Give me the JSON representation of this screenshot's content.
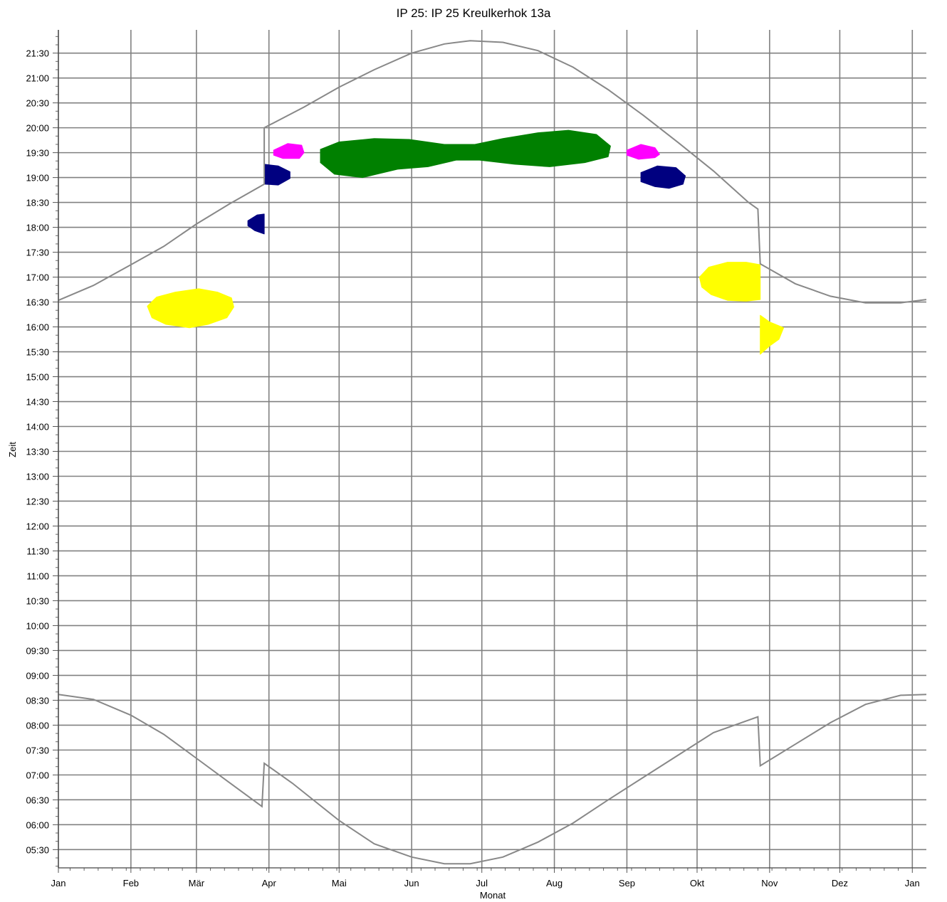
{
  "chart_data": {
    "type": "area",
    "title": "IP 25: IP 25 Kreulkerhok 13a",
    "xlabel": "Monat",
    "ylabel": "Zeit",
    "x_ticks": [
      "Jan",
      "Feb",
      "Mär",
      "Apr",
      "Mai",
      "Jun",
      "Jul",
      "Aug",
      "Sep",
      "Okt",
      "Nov",
      "Dez",
      "Jan"
    ],
    "y_ticks": [
      "05:30",
      "06:00",
      "06:30",
      "07:00",
      "07:30",
      "08:00",
      "08:30",
      "09:00",
      "09:30",
      "10:00",
      "10:30",
      "11:00",
      "11:30",
      "12:00",
      "12:30",
      "13:00",
      "13:30",
      "14:00",
      "14:30",
      "15:00",
      "15:30",
      "16:00",
      "16:30",
      "17:00",
      "17:30",
      "18:00",
      "18:30",
      "19:00",
      "19:30",
      "20:00",
      "20:30",
      "21:00",
      "21:30"
    ],
    "x_range": [
      "Jan 1",
      "Jan 1 (next year)"
    ],
    "y_range": [
      "05:08",
      "21:58"
    ],
    "grid": true,
    "colors": {
      "line": "#888888",
      "grid": "#808080",
      "yellow": "#ffff00",
      "green": "#008000",
      "navy": "#000080",
      "magenta": "#ff00ff",
      "silver": "#c0c0c0"
    },
    "series": [
      {
        "type": "line",
        "color": "#888888",
        "points": [
          [
            0,
            "16:32"
          ],
          [
            15,
            "16:50"
          ],
          [
            31,
            "17:15"
          ],
          [
            45,
            "17:37"
          ],
          [
            59,
            "18:04"
          ],
          [
            73,
            "18:28"
          ],
          [
            88,
            "18:52"
          ],
          [
            88,
            "20:00"
          ],
          [
            105,
            "20:25"
          ],
          [
            120,
            "20:49"
          ],
          [
            135,
            "21:10"
          ],
          [
            151,
            "21:30"
          ],
          [
            165,
            "21:41"
          ],
          [
            176,
            "21:45"
          ],
          [
            190,
            "21:43"
          ],
          [
            205,
            "21:33"
          ],
          [
            220,
            "21:13"
          ],
          [
            235,
            "20:46"
          ],
          [
            250,
            "20:15"
          ],
          [
            265,
            "19:42"
          ],
          [
            280,
            "19:08"
          ],
          [
            295,
            "18:30"
          ],
          [
            299,
            "18:22"
          ],
          [
            300,
            "17:16"
          ],
          [
            315,
            "16:52"
          ],
          [
            330,
            "16:37"
          ],
          [
            345,
            "16:29"
          ],
          [
            360,
            "16:29"
          ],
          [
            371,
            "16:33"
          ]
        ]
      },
      {
        "type": "line",
        "color": "#888888",
        "points": [
          [
            0,
            "08:37"
          ],
          [
            15,
            "08:31"
          ],
          [
            31,
            "08:12"
          ],
          [
            45,
            "07:49"
          ],
          [
            59,
            "07:20"
          ],
          [
            73,
            "06:51"
          ],
          [
            87,
            "06:22"
          ],
          [
            88,
            "07:14"
          ],
          [
            100,
            "06:50"
          ],
          [
            120,
            "06:05"
          ],
          [
            135,
            "05:37"
          ],
          [
            151,
            "05:21"
          ],
          [
            165,
            "05:13"
          ],
          [
            176,
            "05:13"
          ],
          [
            190,
            "05:21"
          ],
          [
            205,
            "05:39"
          ],
          [
            220,
            "06:02"
          ],
          [
            235,
            "06:30"
          ],
          [
            250,
            "06:57"
          ],
          [
            265,
            "07:24"
          ],
          [
            280,
            "07:51"
          ],
          [
            299,
            "08:10"
          ],
          [
            300,
            "07:11"
          ],
          [
            315,
            "07:37"
          ],
          [
            330,
            "08:03"
          ],
          [
            345,
            "08:25"
          ],
          [
            360,
            "08:36"
          ],
          [
            371,
            "08:37"
          ]
        ]
      },
      {
        "type": "area",
        "color": "#ffff00",
        "points": [
          [
            38,
            "16:25"
          ],
          [
            42,
            "16:36"
          ],
          [
            50,
            "16:42"
          ],
          [
            60,
            "16:46"
          ],
          [
            68,
            "16:42"
          ],
          [
            74,
            "16:35"
          ],
          [
            75,
            "16:24"
          ],
          [
            72,
            "16:11"
          ],
          [
            64,
            "16:03"
          ],
          [
            56,
            "15:59"
          ],
          [
            46,
            "16:03"
          ],
          [
            40,
            "16:11"
          ]
        ]
      },
      {
        "type": "area",
        "color": "#ffff00",
        "points": [
          [
            274,
            "17:00"
          ],
          [
            278,
            "17:12"
          ],
          [
            286,
            "17:18"
          ],
          [
            294,
            "17:18"
          ],
          [
            300,
            "17:15"
          ],
          [
            300,
            "16:33"
          ],
          [
            294,
            "16:31"
          ],
          [
            286,
            "16:32"
          ],
          [
            279,
            "16:39"
          ],
          [
            275,
            "16:48"
          ]
        ]
      },
      {
        "type": "area",
        "color": "#ffff00",
        "points": [
          [
            300,
            "16:14"
          ],
          [
            304,
            "16:06"
          ],
          [
            310,
            "15:59"
          ],
          [
            308,
            "15:45"
          ],
          [
            304,
            "15:37"
          ],
          [
            300,
            "15:27"
          ]
        ]
      },
      {
        "type": "area",
        "color": "#000080",
        "points": [
          [
            81,
            "18:08"
          ],
          [
            85,
            "18:15"
          ],
          [
            88,
            "18:16"
          ],
          [
            88,
            "17:52"
          ],
          [
            84,
            "17:56"
          ],
          [
            81,
            "18:02"
          ]
        ]
      },
      {
        "type": "area",
        "color": "#000080",
        "points": [
          [
            88,
            "19:16"
          ],
          [
            94,
            "19:14"
          ],
          [
            99,
            "19:07"
          ],
          [
            99,
            "18:59"
          ],
          [
            94,
            "18:51"
          ],
          [
            88,
            "18:52"
          ]
        ]
      },
      {
        "type": "area",
        "color": "#000080",
        "points": [
          [
            249,
            "19:06"
          ],
          [
            256,
            "19:14"
          ],
          [
            264,
            "19:12"
          ],
          [
            268,
            "19:02"
          ],
          [
            267,
            "18:52"
          ],
          [
            261,
            "18:47"
          ],
          [
            255,
            "18:49"
          ],
          [
            249,
            "18:55"
          ]
        ]
      },
      {
        "type": "area",
        "color": "#ff00ff",
        "points": [
          [
            92,
            "19:33"
          ],
          [
            98,
            "19:41"
          ],
          [
            104,
            "19:39"
          ],
          [
            105,
            "19:30"
          ],
          [
            103,
            "19:23"
          ],
          [
            96,
            "19:23"
          ],
          [
            92,
            "19:27"
          ]
        ]
      },
      {
        "type": "area",
        "color": "#ff00ff",
        "points": [
          [
            243,
            "19:33"
          ],
          [
            249,
            "19:40"
          ],
          [
            255,
            "19:36"
          ],
          [
            257,
            "19:28"
          ],
          [
            255,
            "19:24"
          ],
          [
            248,
            "19:22"
          ],
          [
            243,
            "19:27"
          ]
        ]
      },
      {
        "type": "area",
        "color": "#008000",
        "points": [
          [
            112,
            "19:34"
          ],
          [
            120,
            "19:43"
          ],
          [
            135,
            "19:47"
          ],
          [
            150,
            "19:46"
          ],
          [
            165,
            "19:40"
          ],
          [
            178,
            "19:40"
          ],
          [
            190,
            "19:47"
          ],
          [
            205,
            "19:54"
          ],
          [
            218,
            "19:57"
          ],
          [
            230,
            "19:52"
          ],
          [
            236,
            "19:38"
          ],
          [
            235,
            "19:25"
          ],
          [
            225,
            "19:18"
          ],
          [
            210,
            "19:13"
          ],
          [
            195,
            "19:16"
          ],
          [
            180,
            "19:21"
          ],
          [
            170,
            "19:21"
          ],
          [
            158,
            "19:13"
          ],
          [
            145,
            "19:10"
          ],
          [
            130,
            "19:00"
          ],
          [
            118,
            "19:04"
          ],
          [
            112,
            "19:18"
          ]
        ]
      }
    ]
  }
}
